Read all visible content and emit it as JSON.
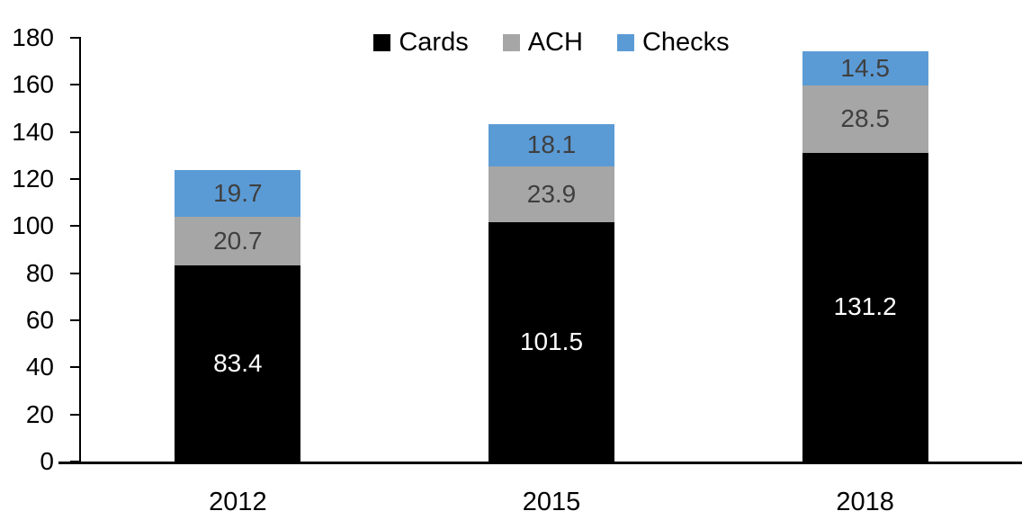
{
  "chart_data": {
    "type": "bar",
    "stacked": true,
    "title": "",
    "xlabel": "",
    "ylabel": "",
    "categories": [
      "2012",
      "2015",
      "2018"
    ],
    "series": [
      {
        "name": "Cards",
        "color": "#000000",
        "label_color": "#ffffff",
        "values": [
          83.4,
          101.5,
          131.2
        ]
      },
      {
        "name": "ACH",
        "color": "#a6a6a6",
        "label_color": "#3f3f3f",
        "values": [
          20.7,
          23.9,
          28.5
        ]
      },
      {
        "name": "Checks",
        "color": "#5b9bd5",
        "label_color": "#3f3f3f",
        "values": [
          19.7,
          18.1,
          14.5
        ]
      }
    ],
    "ylim": [
      0,
      180
    ],
    "ytick_step": 20,
    "ytick_labels": [
      "0",
      "20",
      "40",
      "60",
      "80",
      "100",
      "120",
      "140",
      "160",
      "180"
    ],
    "grid": false,
    "legend_position": "top-center",
    "data_labels": "one-decimal",
    "axis_color": "#000000"
  }
}
